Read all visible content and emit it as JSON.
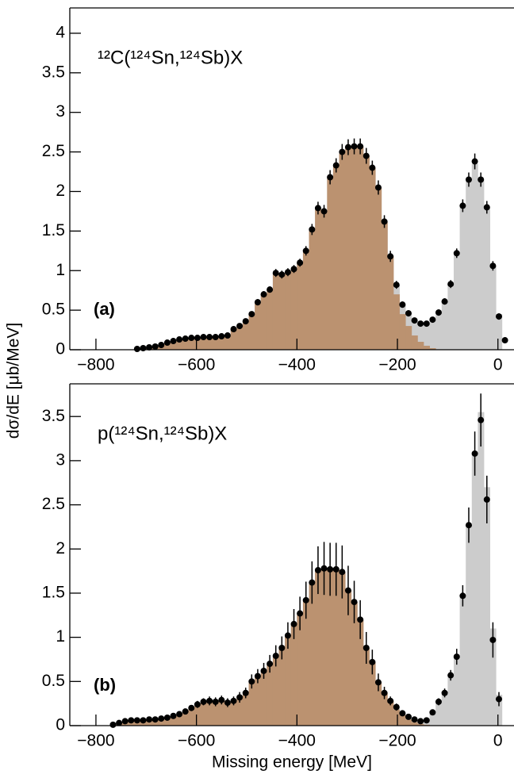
{
  "chart_data": [
    {
      "type": "histogram",
      "title": "¹²C(¹²⁴Sn,¹²⁴Sb)X",
      "label": "(a)",
      "ylabel": "dσ/dE [μb/MeV]",
      "xlim": [
        -852,
        32
      ],
      "ylim": [
        0,
        4.32
      ],
      "xticks": [
        {
          "value": -800,
          "label": "−800"
        },
        {
          "value": -600,
          "label": "−600"
        },
        {
          "value": -400,
          "label": "−400"
        },
        {
          "value": -200,
          "label": "−200"
        },
        0
      ],
      "yticks": [
        0,
        0.5,
        1,
        1.5,
        2,
        2.5,
        3,
        3.5,
        4
      ],
      "bins": [
        -724,
        -712,
        -700,
        -688,
        -676,
        -664,
        -652,
        -640,
        -628,
        -616,
        -604,
        -592,
        -580,
        -568,
        -556,
        -544,
        -532,
        -520,
        -508,
        -496,
        -484,
        -472,
        -460,
        -448,
        -436,
        -424,
        -412,
        -400,
        -388,
        -376,
        -364,
        -352,
        -340,
        -328,
        -316,
        -304,
        -292,
        -280,
        -268,
        -256,
        -244,
        -232,
        -220,
        -208,
        -196,
        -184,
        -172,
        -160,
        -148,
        -136,
        -124,
        -112,
        -100,
        -88,
        -76,
        -64,
        -52,
        -40,
        -28,
        -16,
        -4,
        8,
        20
      ],
      "series": [
        {
          "color": "#cccccc",
          "values": [
            0.01,
            0.02,
            0.03,
            0.04,
            0.06,
            0.09,
            0.11,
            0.13,
            0.14,
            0.15,
            0.15,
            0.16,
            0.16,
            0.16,
            0.17,
            0.18,
            0.26,
            0.3,
            0.36,
            0.45,
            0.6,
            0.7,
            0.76,
            0.97,
            0.95,
            0.98,
            1.02,
            1.1,
            1.25,
            1.52,
            1.79,
            1.75,
            2.18,
            2.33,
            2.5,
            2.56,
            2.57,
            2.57,
            2.45,
            2.3,
            2.05,
            1.62,
            1.18,
            0.82,
            0.57,
            0.46,
            0.37,
            0.33,
            0.33,
            0.38,
            0.47,
            0.61,
            0.83,
            1.22,
            1.82,
            2.15,
            2.35,
            2.15,
            1.8,
            1.06,
            0.45,
            0
          ]
        },
        {
          "color": "#bb9270",
          "values": [
            0.01,
            0.02,
            0.03,
            0.04,
            0.06,
            0.09,
            0.11,
            0.13,
            0.14,
            0.15,
            0.15,
            0.16,
            0.16,
            0.16,
            0.17,
            0.18,
            0.26,
            0.3,
            0.36,
            0.45,
            0.6,
            0.7,
            0.76,
            0.97,
            0.95,
            0.98,
            1.02,
            1.1,
            1.25,
            1.52,
            1.79,
            1.75,
            2.18,
            2.33,
            2.5,
            2.56,
            2.57,
            2.57,
            2.45,
            2.3,
            2.05,
            1.62,
            1.18,
            0.7,
            0.45,
            0.3,
            0.18,
            0.1,
            0.05,
            0.02,
            0,
            0,
            0,
            0,
            0,
            0,
            0,
            0,
            0,
            0,
            0,
            0
          ]
        }
      ],
      "points": {
        "color": "#000000",
        "x": [
          -718,
          -706,
          -694,
          -682,
          -670,
          -658,
          -646,
          -634,
          -622,
          -610,
          -598,
          -586,
          -574,
          -562,
          -550,
          -538,
          -526,
          -514,
          -502,
          -490,
          -478,
          -466,
          -454,
          -442,
          -430,
          -418,
          -406,
          -394,
          -382,
          -370,
          -358,
          -346,
          -334,
          -322,
          -310,
          -298,
          -286,
          -274,
          -262,
          -250,
          -238,
          -226,
          -214,
          -202,
          -190,
          -178,
          -166,
          -154,
          -142,
          -130,
          -118,
          -106,
          -94,
          -82,
          -70,
          -58,
          -46,
          -34,
          -22,
          -10,
          2,
          14
        ],
        "values": [
          0.01,
          0.02,
          0.03,
          0.04,
          0.06,
          0.09,
          0.11,
          0.13,
          0.14,
          0.15,
          0.15,
          0.16,
          0.16,
          0.16,
          0.17,
          0.18,
          0.26,
          0.3,
          0.36,
          0.45,
          0.6,
          0.7,
          0.76,
          0.97,
          0.95,
          0.98,
          1.02,
          1.1,
          1.25,
          1.52,
          1.79,
          1.75,
          2.18,
          2.33,
          2.5,
          2.56,
          2.57,
          2.57,
          2.45,
          2.3,
          2.05,
          1.62,
          1.18,
          0.82,
          0.57,
          0.46,
          0.37,
          0.33,
          0.33,
          0.38,
          0.47,
          0.61,
          0.83,
          1.22,
          1.82,
          2.15,
          2.38,
          2.15,
          1.8,
          1.06,
          0.42,
          0.12
        ],
        "errors": [
          0.01,
          0.01,
          0.01,
          0.01,
          0.01,
          0.01,
          0.01,
          0.01,
          0.01,
          0.01,
          0.01,
          0.01,
          0.01,
          0.01,
          0.01,
          0.02,
          0.02,
          0.02,
          0.03,
          0.03,
          0.04,
          0.04,
          0.04,
          0.05,
          0.05,
          0.05,
          0.05,
          0.05,
          0.06,
          0.07,
          0.08,
          0.08,
          0.09,
          0.09,
          0.1,
          0.1,
          0.1,
          0.1,
          0.1,
          0.09,
          0.09,
          0.08,
          0.07,
          0.05,
          0.04,
          0.04,
          0.03,
          0.03,
          0.03,
          0.03,
          0.04,
          0.04,
          0.05,
          0.06,
          0.08,
          0.09,
          0.1,
          0.09,
          0.08,
          0.06,
          0.04,
          0.03
        ]
      }
    },
    {
      "type": "histogram",
      "title": "p(¹²⁴Sn,¹²⁴Sb)X",
      "label": "(b)",
      "xlabel": "Missing energy [MeV]",
      "xlim": [
        -852,
        32
      ],
      "ylim": [
        0,
        3.87
      ],
      "xticks": [
        {
          "value": -800,
          "label": "−800"
        },
        {
          "value": -600,
          "label": "−600"
        },
        {
          "value": -400,
          "label": "−400"
        },
        {
          "value": -200,
          "label": "−200"
        },
        0
      ],
      "yticks": [
        0,
        0.5,
        1,
        1.5,
        2,
        2.5,
        3,
        3.5
      ],
      "bins": [
        -772,
        -760,
        -748,
        -736,
        -724,
        -712,
        -700,
        -688,
        -676,
        -664,
        -652,
        -640,
        -628,
        -616,
        -604,
        -592,
        -580,
        -568,
        -556,
        -544,
        -532,
        -520,
        -508,
        -496,
        -484,
        -472,
        -460,
        -448,
        -436,
        -424,
        -412,
        -400,
        -388,
        -376,
        -364,
        -352,
        -340,
        -328,
        -316,
        -304,
        -292,
        -280,
        -268,
        -256,
        -244,
        -232,
        -220,
        -208,
        -196,
        -184,
        -172,
        -160,
        -148,
        -136,
        -124,
        -112,
        -100,
        -88,
        -76,
        -64,
        -52,
        -40,
        -28,
        -16,
        -4,
        8
      ],
      "series": [
        {
          "color": "#cccccc",
          "values": [
            0.01,
            0.03,
            0.05,
            0.06,
            0.06,
            0.06,
            0.07,
            0.07,
            0.08,
            0.09,
            0.11,
            0.13,
            0.16,
            0.2,
            0.24,
            0.27,
            0.28,
            0.27,
            0.29,
            0.26,
            0.28,
            0.32,
            0.37,
            0.5,
            0.56,
            0.62,
            0.7,
            0.79,
            0.88,
            1.02,
            1.15,
            1.27,
            1.42,
            1.62,
            1.76,
            1.78,
            1.77,
            1.77,
            1.74,
            1.53,
            1.4,
            1.2,
            0.88,
            0.72,
            0.49,
            0.37,
            0.28,
            0.21,
            0.14,
            0.1,
            0.07,
            0.05,
            0.06,
            0.15,
            0.27,
            0.37,
            0.57,
            0.78,
            1.47,
            2.27,
            3.08,
            3.55,
            2.7,
            1.1,
            0.35
          ]
        },
        {
          "color": "#bb9270",
          "values": [
            0.01,
            0.03,
            0.05,
            0.06,
            0.06,
            0.06,
            0.07,
            0.07,
            0.08,
            0.09,
            0.11,
            0.13,
            0.16,
            0.2,
            0.24,
            0.27,
            0.28,
            0.27,
            0.29,
            0.26,
            0.28,
            0.32,
            0.37,
            0.5,
            0.56,
            0.62,
            0.7,
            0.79,
            0.88,
            1.02,
            1.15,
            1.27,
            1.42,
            1.62,
            1.76,
            1.78,
            1.77,
            1.77,
            1.74,
            1.53,
            1.4,
            1.2,
            0.88,
            0.72,
            0.49,
            0.37,
            0.28,
            0.18,
            0.12,
            0.07,
            0.04,
            0.02,
            0.01,
            0,
            0,
            0,
            0,
            0,
            0,
            0,
            0,
            0,
            0,
            0,
            0
          ]
        }
      ],
      "points": {
        "color": "#000000",
        "x": [
          -766,
          -754,
          -742,
          -730,
          -718,
          -706,
          -694,
          -682,
          -670,
          -658,
          -646,
          -634,
          -622,
          -610,
          -598,
          -586,
          -574,
          -562,
          -550,
          -538,
          -526,
          -514,
          -502,
          -490,
          -478,
          -466,
          -454,
          -442,
          -430,
          -418,
          -406,
          -394,
          -382,
          -370,
          -358,
          -346,
          -334,
          -322,
          -310,
          -298,
          -286,
          -274,
          -262,
          -250,
          -238,
          -226,
          -214,
          -202,
          -190,
          -178,
          -166,
          -154,
          -142,
          -130,
          -118,
          -106,
          -94,
          -82,
          -70,
          -58,
          -46,
          -34,
          -22,
          -10,
          2
        ],
        "values": [
          0.01,
          0.03,
          0.05,
          0.06,
          0.06,
          0.06,
          0.07,
          0.07,
          0.08,
          0.09,
          0.11,
          0.13,
          0.16,
          0.2,
          0.24,
          0.27,
          0.28,
          0.27,
          0.29,
          0.26,
          0.28,
          0.32,
          0.37,
          0.5,
          0.56,
          0.62,
          0.7,
          0.79,
          0.88,
          1.02,
          1.15,
          1.27,
          1.42,
          1.62,
          1.76,
          1.78,
          1.77,
          1.77,
          1.74,
          1.53,
          1.4,
          1.2,
          0.88,
          0.72,
          0.49,
          0.37,
          0.28,
          0.21,
          0.14,
          0.1,
          0.07,
          0.05,
          0.06,
          0.15,
          0.27,
          0.37,
          0.57,
          0.78,
          1.47,
          2.27,
          3.08,
          3.46,
          2.56,
          0.97,
          0.3
        ],
        "errors": [
          0.01,
          0.01,
          0.01,
          0.01,
          0.01,
          0.01,
          0.01,
          0.01,
          0.02,
          0.02,
          0.02,
          0.02,
          0.03,
          0.03,
          0.04,
          0.04,
          0.05,
          0.05,
          0.05,
          0.05,
          0.05,
          0.06,
          0.06,
          0.08,
          0.08,
          0.09,
          0.1,
          0.12,
          0.13,
          0.15,
          0.17,
          0.19,
          0.21,
          0.24,
          0.27,
          0.3,
          0.3,
          0.3,
          0.3,
          0.28,
          0.24,
          0.22,
          0.18,
          0.14,
          0.1,
          0.07,
          0.05,
          0.04,
          0.03,
          0.03,
          0.02,
          0.02,
          0.02,
          0.03,
          0.04,
          0.05,
          0.06,
          0.09,
          0.12,
          0.2,
          0.25,
          0.3,
          0.27,
          0.2,
          0.08
        ]
      }
    }
  ]
}
